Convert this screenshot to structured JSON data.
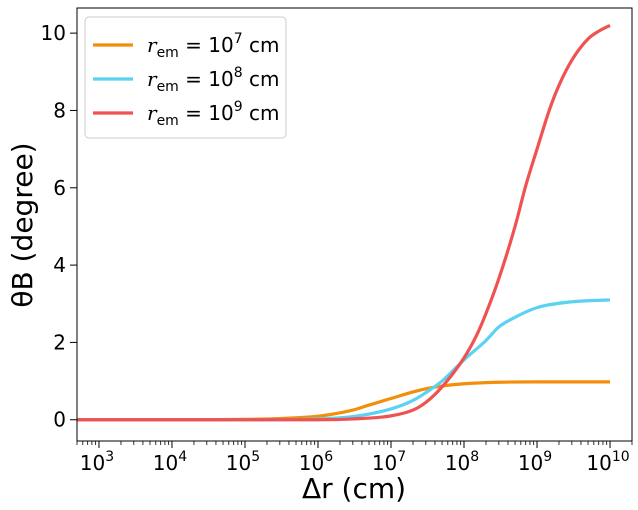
{
  "chart_data": {
    "type": "line",
    "xscale": "log",
    "xlim": [
      500,
      20000000000
    ],
    "ylim": [
      -0.55,
      10.65
    ],
    "xlabel": "Δr (cm)",
    "ylabel": "θB (degree)",
    "grid": false,
    "legend_position": "top-left",
    "x_ticks": [
      {
        "value": 1000,
        "label": "10^3"
      },
      {
        "value": 10000,
        "label": "10^4"
      },
      {
        "value": 100000,
        "label": "10^5"
      },
      {
        "value": 1000000,
        "label": "10^6"
      },
      {
        "value": 10000000,
        "label": "10^7"
      },
      {
        "value": 100000000,
        "label": "10^8"
      },
      {
        "value": 1000000000,
        "label": "10^9"
      },
      {
        "value": 10000000000,
        "label": "10^10"
      }
    ],
    "y_ticks": [
      0,
      2,
      4,
      6,
      8,
      10
    ],
    "series": [
      {
        "name": "r_em = 10^7 cm",
        "color": "#f28e0a",
        "x": [
          500,
          1000,
          10000,
          100000,
          300000,
          1000000,
          2000000,
          3000000,
          5000000,
          10000000,
          20000000,
          30000000,
          50000000,
          100000000,
          200000000,
          300000000,
          1000000000,
          10000000000
        ],
        "y": [
          0.0,
          0.0,
          0.0,
          0.01,
          0.03,
          0.09,
          0.18,
          0.25,
          0.38,
          0.55,
          0.72,
          0.8,
          0.87,
          0.93,
          0.96,
          0.97,
          0.98,
          0.98
        ]
      },
      {
        "name": "r_em = 10^8 cm",
        "color": "#5bd1f3",
        "x": [
          500,
          10000,
          100000,
          1000000,
          3000000,
          10000000,
          20000000,
          30000000,
          50000000,
          100000000,
          200000000,
          300000000,
          500000000,
          1000000000,
          3000000000,
          10000000000
        ],
        "y": [
          0.0,
          0.0,
          0.0,
          0.02,
          0.08,
          0.28,
          0.5,
          0.7,
          1.0,
          1.55,
          2.05,
          2.4,
          2.65,
          2.9,
          3.05,
          3.1
        ]
      },
      {
        "name": "r_em = 10^9 cm",
        "color": "#f05252",
        "x": [
          500,
          10000,
          100000,
          1000000,
          3000000,
          10000000,
          20000000,
          30000000,
          50000000,
          100000000,
          150000000,
          200000000,
          300000000,
          500000000,
          700000000,
          1000000000,
          1500000000,
          2000000000,
          3000000000,
          5000000000,
          7000000000,
          10000000000
        ],
        "y": [
          0.0,
          0.0,
          0.0,
          0.0,
          0.02,
          0.1,
          0.25,
          0.45,
          0.85,
          1.6,
          2.2,
          2.75,
          3.65,
          5.0,
          6.05,
          7.0,
          8.05,
          8.65,
          9.3,
          9.85,
          10.05,
          10.2
        ]
      }
    ]
  }
}
